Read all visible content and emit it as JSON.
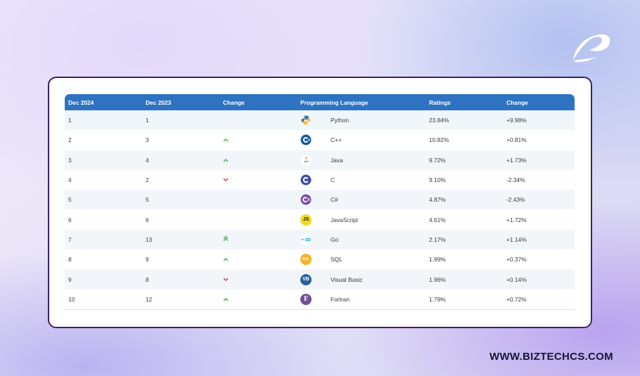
{
  "brand": {
    "logo_icon": "biztech-leaf-logo-icon",
    "website": "WWW.BIZTECHCS.COM"
  },
  "table": {
    "headers": [
      "Dec 2024",
      "Dec 2023",
      "Change",
      "Programming Language",
      "Ratings",
      "Change"
    ],
    "rows": [
      {
        "rank": "1",
        "prev": "1",
        "trend": "",
        "icon": "python-icon",
        "language": "Python",
        "rating": "23.84%",
        "change": "+9.98%"
      },
      {
        "rank": "2",
        "prev": "3",
        "trend": "up",
        "icon": "cpp-icon",
        "language": "C++",
        "rating": "10.82%",
        "change": "+0.81%"
      },
      {
        "rank": "3",
        "prev": "4",
        "trend": "up",
        "icon": "java-icon",
        "language": "Java",
        "rating": "9.72%",
        "change": "+1.73%"
      },
      {
        "rank": "4",
        "prev": "2",
        "trend": "down",
        "icon": "c-icon",
        "language": "C",
        "rating": "9.10%",
        "change": "-2.34%"
      },
      {
        "rank": "5",
        "prev": "5",
        "trend": "",
        "icon": "csharp-icon",
        "language": "C#",
        "rating": "4.87%",
        "change": "-2.43%"
      },
      {
        "rank": "6",
        "prev": "6",
        "trend": "",
        "icon": "javascript-icon",
        "language": "JavaScript",
        "rating": "4.61%",
        "change": "+1.72%"
      },
      {
        "rank": "7",
        "prev": "13",
        "trend": "double-up",
        "icon": "go-icon",
        "language": "Go",
        "rating": "2.17%",
        "change": "+1.14%"
      },
      {
        "rank": "8",
        "prev": "9",
        "trend": "up",
        "icon": "sql-icon",
        "language": "SQL",
        "rating": "1.99%",
        "change": "+0.37%"
      },
      {
        "rank": "9",
        "prev": "8",
        "trend": "down",
        "icon": "visual-basic-icon",
        "language": "Visual Basic",
        "rating": "1.96%",
        "change": "+0.14%"
      },
      {
        "rank": "10",
        "prev": "12",
        "trend": "up",
        "icon": "fortran-icon",
        "language": "Fortran",
        "rating": "1.79%",
        "change": "+0.72%"
      }
    ]
  },
  "colors": {
    "header": "#2d73c2",
    "card_border": "#3d1f63",
    "up": "#3cab4a",
    "down": "#d9342b"
  },
  "icons_text": {
    "js": "JS",
    "sql": "SQL",
    "vb": "VB",
    "fortran": "F"
  }
}
